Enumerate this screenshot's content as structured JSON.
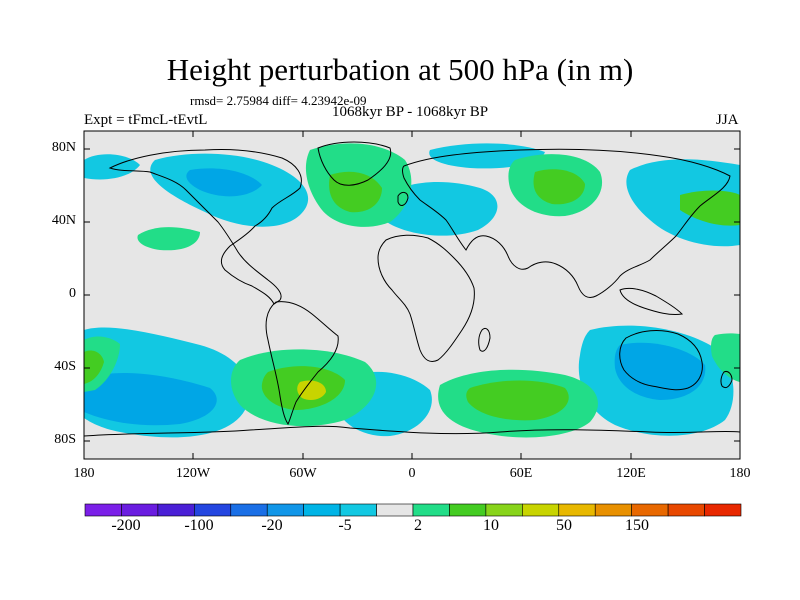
{
  "title": "Height perturbation at 500 hPa (in m)",
  "stats_line": "rmsd= 2.75984  diff= 4.23942e-09",
  "period_label": "1068kyr BP - 1068kyr BP",
  "experiment_label": "Expt = tFmcL-tEvtL",
  "season_label": "JJA",
  "map": {
    "projection": "cylindrical equidistant",
    "variable": "500 hPa geopotential height perturbation",
    "units": "m",
    "lat_range": [
      -90,
      90
    ],
    "lon_range": [
      -180,
      180
    ],
    "lat_ticks": [
      "80N",
      "40N",
      "0",
      "40S",
      "80S"
    ],
    "lon_ticks": [
      "180",
      "120W",
      "60W",
      "0",
      "60E",
      "120E",
      "180"
    ],
    "features": [
      {
        "region": "northern North America",
        "category": "-5 to -2"
      },
      {
        "region": "Greenland / north Atlantic",
        "category": "2 to 10"
      },
      {
        "region": "Europe",
        "category": "-5 to -2"
      },
      {
        "region": "central Siberia",
        "category": "2 to 10"
      },
      {
        "region": "northwest Pacific",
        "category": "-5 to -2"
      },
      {
        "region": "South Pacific 40S-60S",
        "category": "-20 to -5"
      },
      {
        "region": "South Atlantic near 55S 50W",
        "category": "10 to 50"
      },
      {
        "region": "southern Indian Ocean",
        "category": "2 to 10"
      },
      {
        "region": "Australia / SW Pacific",
        "category": "-20 to -5"
      }
    ]
  },
  "colorbar": {
    "labels": [
      "-200",
      "-100",
      "-20",
      "-5",
      "2",
      "10",
      "50",
      "150"
    ],
    "colors": [
      "#7b1fe8",
      "#6a1de0",
      "#4a1fd6",
      "#2446e0",
      "#1a6fe6",
      "#1196e8",
      "#00b4e6",
      "#12c8e2",
      "#e6e6e6",
      "#22dd88",
      "#44cc22",
      "#88d41a",
      "#c8d400",
      "#e8b800",
      "#e89000",
      "#e86800",
      "#e84800",
      "#e82800"
    ]
  },
  "palette": {
    "background": "#e6e6e6",
    "neg_light": "#12c8e2",
    "neg_mid": "#00a6e6",
    "pos_light": "#22dd88",
    "pos_mid": "#44cc22",
    "pos_strong": "#c8d400"
  }
}
